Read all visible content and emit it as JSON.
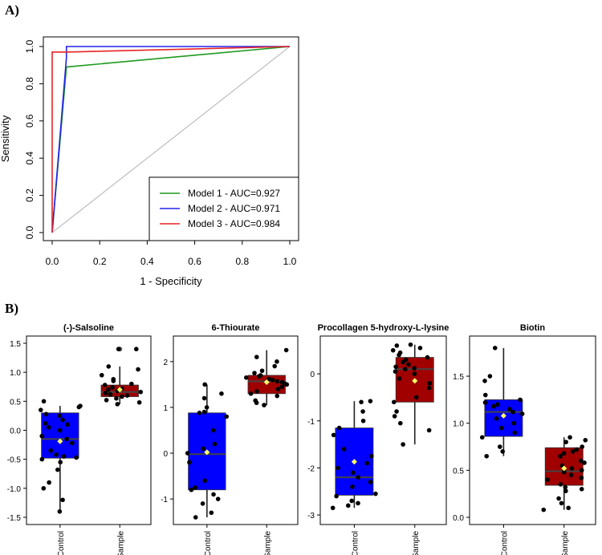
{
  "panel_labels": {
    "a": "A)",
    "b": "B)"
  },
  "chart_data": [
    {
      "type": "line",
      "panel": "A)",
      "xlabel": "1 - Specificity",
      "ylabel": "Sensitivity",
      "xlim": [
        0,
        1
      ],
      "ylim": [
        0,
        1
      ],
      "xticks": [
        "0.0",
        "0.2",
        "0.4",
        "0.6",
        "0.8",
        "1.0"
      ],
      "yticks": [
        "0.0",
        "0.2",
        "0.4",
        "0.6",
        "0.8",
        "1.0"
      ],
      "grid": false,
      "legend": "bottom-right",
      "diagonal_reference": true,
      "series": [
        {
          "name": "Model 1 - AUC=0.927",
          "color": "#1f9a1f",
          "x": [
            0,
            0.06,
            1
          ],
          "y": [
            0,
            0.89,
            1
          ]
        },
        {
          "name": "Model 2 - AUC=0.971",
          "color": "#2424e8",
          "x": [
            0,
            0.06,
            0.06,
            1
          ],
          "y": [
            0,
            0.94,
            1,
            1
          ]
        },
        {
          "name": "Model 3 - AUC=0.984",
          "color": "#e82424",
          "x": [
            0,
            0,
            0.06,
            1
          ],
          "y": [
            0,
            0.97,
            0.97,
            1
          ]
        }
      ]
    },
    {
      "type": "box",
      "panel": "B)",
      "title": "(-)-Salsoline",
      "categories": [
        "Control",
        "Sample"
      ],
      "ylim": [
        -1.5,
        1.5
      ],
      "yticks": [
        "-1.5",
        "-1.0",
        "-0.5",
        "0.0",
        "0.5",
        "1.0",
        "1.5"
      ],
      "boxes": [
        {
          "q1": -0.48,
          "median": -0.15,
          "q3": 0.3,
          "whisker_low": -1.4,
          "whisker_high": 0.42,
          "mean": -0.19,
          "points": [
            -1.4,
            -1.2,
            -1.0,
            -0.9,
            -0.68,
            -0.55,
            -0.5,
            -0.47,
            -0.45,
            -0.42,
            -0.35,
            -0.22,
            -0.15,
            -0.1,
            0.0,
            0.05,
            0.1,
            0.12,
            0.18,
            0.25,
            0.28,
            0.35,
            0.4,
            0.42,
            0.5
          ]
        },
        {
          "q1": 0.58,
          "median": 0.66,
          "q3": 0.78,
          "whisker_low": 0.45,
          "whisker_high": 1.1,
          "mean": 0.7,
          "outliers": [
            1.4
          ],
          "points": [
            0.45,
            0.48,
            0.52,
            0.55,
            0.58,
            0.6,
            0.62,
            0.64,
            0.66,
            0.68,
            0.7,
            0.72,
            0.74,
            0.78,
            0.8,
            0.85,
            0.88,
            0.95,
            1.05,
            1.1,
            1.4,
            1.4
          ]
        }
      ]
    },
    {
      "type": "box",
      "title": "6-Thiourate",
      "categories": [
        "Control",
        "Sample"
      ],
      "ylim": [
        -1.4,
        2.4
      ],
      "yticks": [
        "-1",
        "0",
        "1",
        "2"
      ],
      "boxes": [
        {
          "q1": -0.8,
          "median": -0.02,
          "q3": 0.88,
          "whisker_low": -1.4,
          "whisker_high": 1.5,
          "mean": 0.02,
          "points": [
            -1.4,
            -1.3,
            -1.1,
            -1.0,
            -0.9,
            -0.8,
            -0.75,
            -0.6,
            -0.2,
            0.0,
            0.1,
            0.2,
            0.5,
            0.8,
            0.88,
            0.9,
            1.0,
            1.2,
            1.3,
            1.5
          ]
        },
        {
          "q1": 1.3,
          "median": 1.57,
          "q3": 1.7,
          "whisker_low": 1.05,
          "whisker_high": 2.25,
          "mean": 1.55,
          "points": [
            1.05,
            1.1,
            1.15,
            1.25,
            1.3,
            1.35,
            1.4,
            1.45,
            1.5,
            1.52,
            1.55,
            1.57,
            1.6,
            1.62,
            1.65,
            1.68,
            1.7,
            1.75,
            1.8,
            1.9,
            2.0,
            2.1,
            2.25
          ]
        }
      ]
    },
    {
      "type": "box",
      "title": "Procollagen 5-hydroxy-L-lysine",
      "categories": [
        "Control",
        "Sample"
      ],
      "ylim": [
        -3.05,
        0.65
      ],
      "yticks": [
        "-3",
        "-2",
        "-1",
        "0"
      ],
      "boxes": [
        {
          "q1": -2.58,
          "median": -2.2,
          "q3": -1.15,
          "whisker_low": -2.85,
          "whisker_high": -0.58,
          "mean": -1.87,
          "points": [
            -2.85,
            -2.8,
            -2.75,
            -2.7,
            -2.6,
            -2.55,
            -2.4,
            -2.3,
            -2.2,
            -2.1,
            -2.0,
            -1.9,
            -1.75,
            -1.6,
            -1.3,
            -1.15,
            -1.0,
            -0.8,
            -0.6,
            -0.58
          ]
        },
        {
          "q1": -0.6,
          "median": 0.1,
          "q3": 0.35,
          "whisker_low": -1.5,
          "whisker_high": 0.62,
          "mean": -0.15,
          "points": [
            -1.5,
            -1.2,
            -1.05,
            -0.9,
            -0.8,
            -0.6,
            -0.5,
            -0.3,
            -0.2,
            -0.1,
            0.0,
            0.05,
            0.1,
            0.12,
            0.15,
            0.2,
            0.25,
            0.3,
            0.35,
            0.4,
            0.45,
            0.5,
            0.55,
            0.6,
            0.62
          ]
        }
      ]
    },
    {
      "type": "box",
      "title": "Biotin",
      "categories": [
        "Control",
        "Sample"
      ],
      "ylim": [
        0,
        1.85
      ],
      "yticks": [
        "0.0",
        "0.5",
        "1.0",
        "1.5"
      ],
      "boxes": [
        {
          "q1": 0.86,
          "median": 1.12,
          "q3": 1.25,
          "whisker_low": 0.65,
          "whisker_high": 1.8,
          "mean": 1.08,
          "points": [
            0.65,
            0.7,
            0.75,
            0.85,
            0.9,
            0.95,
            1.0,
            1.05,
            1.1,
            1.12,
            1.15,
            1.18,
            1.2,
            1.22,
            1.25,
            1.3,
            1.45,
            1.5,
            1.8
          ]
        },
        {
          "q1": 0.34,
          "median": 0.49,
          "q3": 0.74,
          "whisker_low": 0.08,
          "whisker_high": 0.85,
          "mean": 0.52,
          "points": [
            0.08,
            0.1,
            0.15,
            0.2,
            0.28,
            0.3,
            0.32,
            0.35,
            0.4,
            0.42,
            0.45,
            0.48,
            0.5,
            0.52,
            0.55,
            0.58,
            0.6,
            0.65,
            0.68,
            0.7,
            0.72,
            0.75,
            0.8,
            0.82,
            0.85
          ]
        }
      ]
    }
  ],
  "colors": {
    "control_box": "#0000ff",
    "sample_box": "#a00000",
    "median_line": "#444444",
    "point": "#000000",
    "mean_marker": "#ffff66",
    "diagonal": "#b0b0b0"
  }
}
